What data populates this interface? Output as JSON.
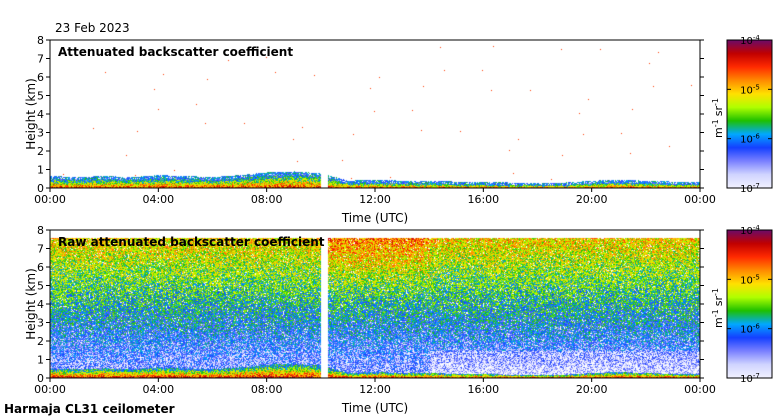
{
  "header": {
    "date": "23 Feb 2023"
  },
  "footer": {
    "instrument": "Harmaja CL31 ceilometer"
  },
  "chart_data": [
    {
      "type": "heatmap",
      "id": "top",
      "title": "Attenuated backscatter coefficient",
      "xlabel": "Time (UTC)",
      "ylabel": "Height (km)",
      "x_ticks": [
        "00:00",
        "04:00",
        "08:00",
        "12:00",
        "16:00",
        "20:00",
        "00:00"
      ],
      "y_ticks": [
        "0",
        "1",
        "2",
        "3",
        "4",
        "5",
        "6",
        "7",
        "8"
      ],
      "xlim_hours": [
        0,
        24
      ],
      "ylim_km": [
        0,
        8
      ],
      "data_gap_hours": [
        10.0,
        10.25
      ],
      "colorbar": {
        "unit_text": "m-1 sr-1",
        "unit_base": "m",
        "unit_exp1": "-1",
        "unit_mid": "sr",
        "unit_exp2": "-1",
        "ticks": [
          {
            "base": "10",
            "exp": "-4",
            "log": -4
          },
          {
            "base": "10",
            "exp": "-5",
            "log": -5
          },
          {
            "base": "10",
            "exp": "-6",
            "log": -6
          },
          {
            "base": "10",
            "exp": "-7",
            "log": -7
          }
        ],
        "colors": [
          "#6a0b6a",
          "#c00000",
          "#ff2a00",
          "#ff8a00",
          "#ffe000",
          "#b0ff00",
          "#1ec000",
          "#00a8ff",
          "#1540ff",
          "#7a80ff",
          "#d0d4ff",
          "#f2f2ff"
        ]
      },
      "boundary_layer_km": [
        0.55,
        0.5,
        0.55,
        0.5,
        0.6,
        0.55,
        0.5,
        0.6,
        0.75,
        0.8,
        0.7,
        0.3,
        0.35,
        0.3,
        0.3,
        0.25,
        0.25,
        0.2,
        0.2,
        0.2,
        0.3,
        0.35,
        0.3,
        0.25,
        0.25
      ]
    },
    {
      "type": "heatmap",
      "id": "bottom",
      "title": "Raw attenuated backscatter coefficient",
      "xlabel": "Time (UTC)",
      "ylabel": "Height (km)",
      "x_ticks": [
        "00:00",
        "04:00",
        "08:00",
        "12:00",
        "16:00",
        "20:00",
        "00:00"
      ],
      "y_ticks": [
        "0",
        "1",
        "2",
        "3",
        "4",
        "5",
        "6",
        "7",
        "8"
      ],
      "xlim_hours": [
        0,
        24
      ],
      "ylim_km": [
        0,
        8
      ],
      "data_gap_hours": [
        10.0,
        10.25
      ],
      "colorbar": {
        "unit_text": "m-1 sr-1",
        "unit_base": "m",
        "unit_exp1": "-1",
        "unit_mid": "sr",
        "unit_exp2": "-1",
        "ticks": [
          {
            "base": "10",
            "exp": "-4",
            "log": -4
          },
          {
            "base": "10",
            "exp": "-5",
            "log": -5
          },
          {
            "base": "10",
            "exp": "-6",
            "log": -6
          },
          {
            "base": "10",
            "exp": "-7",
            "log": -7
          }
        ],
        "colors": [
          "#6a0b6a",
          "#c00000",
          "#ff2a00",
          "#ff8a00",
          "#ffe000",
          "#b0ff00",
          "#1ec000",
          "#00a8ff",
          "#1540ff",
          "#7a80ff",
          "#d0d4ff",
          "#f2f2ff"
        ]
      }
    }
  ]
}
